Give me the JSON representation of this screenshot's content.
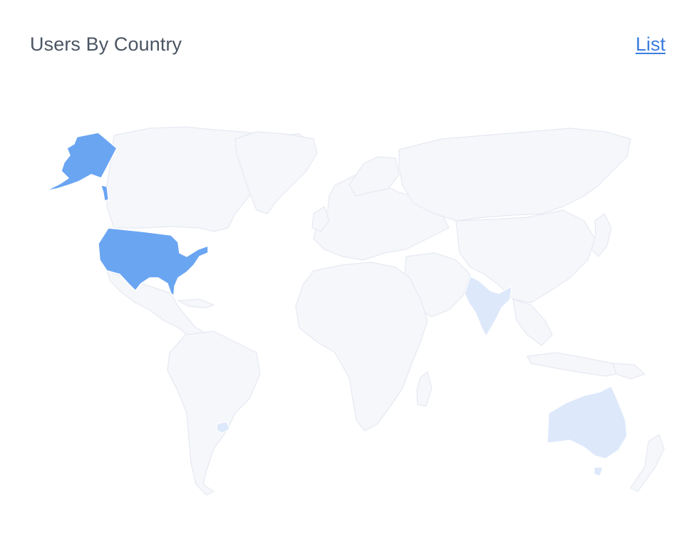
{
  "header": {
    "title": "Users By Country",
    "list_link": "List"
  },
  "colors": {
    "title_text": "#4b5563",
    "link": "#3b7de0",
    "base_country": "#f6f7fb",
    "base_border": "#e6e9f2",
    "level_high": "#6aa5f2",
    "level_low": "#dde8fb"
  },
  "highlighted_countries": [
    {
      "country": "United States",
      "level": "high"
    },
    {
      "country": "India",
      "level": "low"
    },
    {
      "country": "Australia",
      "level": "low"
    },
    {
      "country": "Uruguay",
      "level": "low"
    }
  ]
}
